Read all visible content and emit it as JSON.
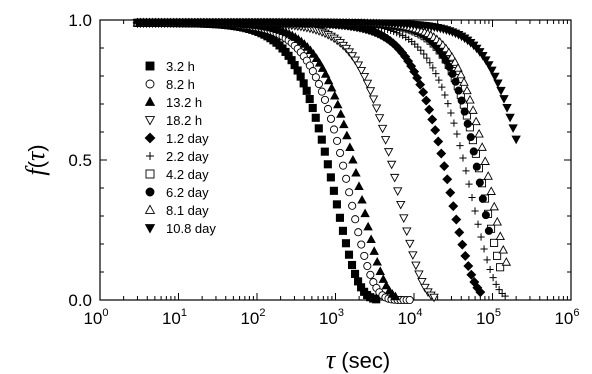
{
  "chart_data": {
    "type": "scatter",
    "xscale": "log",
    "xlim": [
      1,
      1000000
    ],
    "ylim": [
      0.0,
      1.0
    ],
    "xlabel": {
      "symbol": "τ",
      "rest": " (sec)"
    },
    "ylabel": {
      "f": "f",
      "open": "(",
      "symbol": "τ",
      "close": ")"
    },
    "x_ticks": [
      {
        "base": "10",
        "exp": "0",
        "value": 1
      },
      {
        "base": "10",
        "exp": "1",
        "value": 10
      },
      {
        "base": "10",
        "exp": "2",
        "value": 100
      },
      {
        "base": "10",
        "exp": "3",
        "value": 1000
      },
      {
        "base": "10",
        "exp": "4",
        "value": 10000
      },
      {
        "base": "10",
        "exp": "5",
        "value": 100000
      },
      {
        "base": "10",
        "exp": "6",
        "value": 1000000
      }
    ],
    "y_ticks": [
      {
        "label": "0.0",
        "value": 0.0
      },
      {
        "label": "0.5",
        "value": 0.5
      },
      {
        "label": "1.0",
        "value": 1.0
      }
    ],
    "grid": false,
    "legend_position": "top-left",
    "series": [
      {
        "name": "3.2 h",
        "marker": "square-filled",
        "tau": 1000,
        "beta": 1.5,
        "x_start": 3,
        "x_end": 3300
      },
      {
        "name": "8.2 h",
        "marker": "circle-open",
        "tau": 1550,
        "beta": 1.5,
        "x_start": 3,
        "x_end": 8800
      },
      {
        "name": "13.2 h",
        "marker": "triangle-up-filled",
        "tau": 2150,
        "beta": 1.5,
        "x_start": 3,
        "x_end": 5800
      },
      {
        "name": "18.2 h",
        "marker": "triangle-down-open",
        "tau": 6500,
        "beta": 1.5,
        "x_start": 3,
        "x_end": 18000
      },
      {
        "name": "1.2 day",
        "marker": "diamond-filled",
        "tau": 30000,
        "beta": 1.5,
        "x_start": 3,
        "x_end": 70000
      },
      {
        "name": "2.2 day",
        "marker": "plus",
        "tau": 55000,
        "beta": 1.5,
        "x_start": 3,
        "x_end": 145000
      },
      {
        "name": "4.2 day",
        "marker": "square-open",
        "tau": 80000,
        "beta": 1.7,
        "x_start": 3,
        "x_end": 125000
      },
      {
        "name": "6.2 day",
        "marker": "circle-filled",
        "tau": 75000,
        "beta": 1.8,
        "x_start": 3,
        "x_end": 90000
      },
      {
        "name": "8.1 day",
        "marker": "triangle-up-open",
        "tau": 100000,
        "beta": 1.7,
        "x_start": 3,
        "x_end": 150000
      },
      {
        "name": "10.8 day",
        "marker": "triangle-down-filled",
        "tau": 300000,
        "beta": 1.5,
        "x_start": 3,
        "x_end": 200000
      }
    ]
  }
}
